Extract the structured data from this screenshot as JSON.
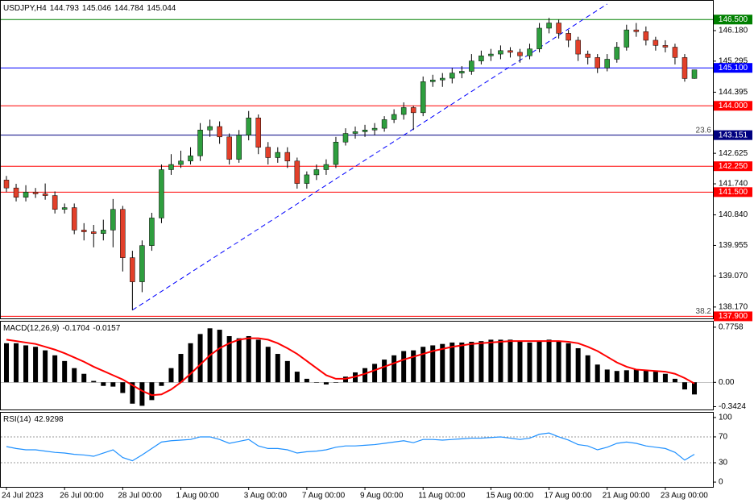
{
  "chart_data": [
    {
      "type": "candlestick",
      "title": "USDJPY,H4",
      "title_values": [
        144.793,
        145.046,
        144.784,
        145.044
      ],
      "categories": [
        "24 Jul 2023",
        null,
        null,
        null,
        null,
        null,
        "26 Jul 00:00",
        null,
        null,
        null,
        null,
        null,
        "28 Jul 00:00",
        null,
        null,
        null,
        null,
        null,
        "1 Aug 00:00",
        null,
        null,
        null,
        null,
        null,
        null,
        "3 Aug 00:00",
        null,
        null,
        null,
        null,
        null,
        "7 Aug 00:00",
        null,
        null,
        null,
        null,
        null,
        "9 Aug 00:00",
        null,
        null,
        null,
        null,
        null,
        "11 Aug 00:00",
        null,
        null,
        null,
        null,
        null,
        null,
        "15 Aug 00:00",
        null,
        null,
        null,
        null,
        null,
        "17 Aug 00:00",
        null,
        null,
        null,
        null,
        null,
        "21 Aug 00:00",
        null,
        null,
        null,
        null,
        null,
        "23 Aug 00:00",
        null,
        null,
        null
      ],
      "ohlc": [
        [
          141.85,
          141.97,
          141.5,
          141.62
        ],
        [
          141.62,
          141.74,
          141.23,
          141.35
        ],
        [
          141.35,
          141.7,
          141.23,
          141.5
        ],
        [
          141.5,
          141.62,
          141.33,
          141.45
        ],
        [
          141.45,
          141.75,
          141.28,
          141.4
        ],
        [
          141.4,
          141.52,
          140.88,
          141.0
        ],
        [
          141.0,
          141.17,
          140.88,
          141.05
        ],
        [
          141.05,
          141.17,
          140.28,
          140.4
        ],
        [
          140.4,
          140.6,
          140.1,
          140.35
        ],
        [
          140.35,
          140.55,
          139.9,
          140.3
        ],
        [
          140.3,
          140.7,
          140.1,
          140.4
        ],
        [
          140.4,
          141.3,
          139.9,
          141.0
        ],
        [
          141.0,
          141.1,
          139.2,
          139.6
        ],
        [
          139.6,
          139.8,
          138.08,
          138.9
        ],
        [
          138.9,
          140.1,
          138.6,
          139.95
        ],
        [
          139.95,
          140.9,
          139.8,
          140.75
        ],
        [
          140.75,
          142.3,
          140.6,
          142.15
        ],
        [
          142.15,
          142.6,
          142.0,
          142.3
        ],
        [
          142.3,
          142.7,
          142.2,
          142.4
        ],
        [
          142.4,
          142.8,
          142.3,
          142.55
        ],
        [
          142.55,
          143.5,
          142.4,
          143.3
        ],
        [
          143.3,
          143.6,
          143.1,
          143.4
        ],
        [
          143.4,
          143.55,
          142.9,
          143.1
        ],
        [
          143.1,
          143.2,
          142.3,
          142.45
        ],
        [
          142.45,
          143.3,
          142.35,
          143.15
        ],
        [
          143.15,
          143.85,
          143.0,
          143.65
        ],
        [
          143.65,
          143.75,
          142.6,
          142.8
        ],
        [
          142.8,
          142.95,
          142.3,
          142.5
        ],
        [
          142.5,
          142.8,
          142.35,
          142.65
        ],
        [
          142.65,
          142.8,
          142.2,
          142.4
        ],
        [
          142.4,
          142.5,
          141.6,
          141.75
        ],
        [
          141.75,
          142.1,
          141.6,
          142.0
        ],
        [
          142.0,
          142.3,
          141.85,
          142.15
        ],
        [
          142.15,
          142.45,
          142.0,
          142.3
        ],
        [
          142.3,
          143.1,
          142.2,
          142.95
        ],
        [
          142.95,
          143.35,
          142.85,
          143.2
        ],
        [
          143.2,
          143.4,
          143.05,
          143.25
        ],
        [
          143.25,
          143.45,
          143.1,
          143.3
        ],
        [
          143.3,
          143.5,
          143.15,
          143.35
        ],
        [
          143.35,
          143.7,
          143.25,
          143.6
        ],
        [
          143.6,
          143.9,
          143.5,
          143.75
        ],
        [
          143.75,
          144.1,
          143.6,
          143.95
        ],
        [
          143.95,
          144.0,
          143.3,
          143.8
        ],
        [
          143.8,
          144.85,
          143.7,
          144.7
        ],
        [
          144.7,
          144.9,
          144.55,
          144.75
        ],
        [
          144.75,
          144.95,
          144.55,
          144.8
        ],
        [
          144.8,
          145.1,
          144.65,
          144.95
        ],
        [
          144.95,
          145.15,
          144.8,
          145.0
        ],
        [
          145.0,
          145.5,
          144.9,
          145.3
        ],
        [
          145.3,
          145.6,
          145.2,
          145.45
        ],
        [
          145.45,
          145.65,
          145.3,
          145.5
        ],
        [
          145.5,
          145.75,
          145.35,
          145.6
        ],
        [
          145.6,
          145.7,
          145.4,
          145.55
        ],
        [
          145.55,
          145.65,
          145.25,
          145.45
        ],
        [
          145.45,
          145.8,
          145.35,
          145.65
        ],
        [
          145.65,
          146.4,
          145.55,
          146.25
        ],
        [
          146.25,
          146.55,
          146.1,
          146.4
        ],
        [
          146.4,
          146.5,
          145.95,
          146.1
        ],
        [
          146.1,
          146.2,
          145.7,
          145.9
        ],
        [
          145.9,
          146.0,
          145.3,
          145.5
        ],
        [
          145.5,
          145.6,
          145.2,
          145.4
        ],
        [
          145.4,
          145.5,
          144.95,
          145.1
        ],
        [
          145.1,
          145.5,
          145.0,
          145.35
        ],
        [
          145.35,
          145.85,
          145.25,
          145.7
        ],
        [
          145.7,
          146.35,
          145.6,
          146.2
        ],
        [
          146.2,
          146.4,
          146.0,
          146.15
        ],
        [
          146.15,
          146.3,
          145.75,
          145.9
        ],
        [
          145.9,
          146.0,
          145.6,
          145.75
        ],
        [
          145.75,
          145.9,
          145.55,
          145.7
        ],
        [
          145.7,
          145.8,
          145.2,
          145.4
        ],
        [
          145.4,
          145.5,
          144.7,
          144.79
        ],
        [
          144.793,
          145.046,
          144.784,
          145.044
        ]
      ],
      "up_color": "#2e9e3e",
      "down_color": "#e2402a",
      "wick_color": "#000000",
      "ylim": [
        137.84,
        147.02
      ],
      "yticks": [
        {
          "value": 146.18,
          "label": "146.180"
        },
        145.295,
        144.395,
        142.625,
        {
          "value": 141.74,
          "label": "141.740"
        },
        {
          "value": 140.84,
          "label": "140.840"
        },
        139.955,
        {
          "value": 139.07,
          "label": "139.070"
        },
        {
          "value": 138.17,
          "label": "138.170"
        }
      ],
      "levels": [
        {
          "value": 146.5,
          "label": "146.500",
          "color": "#008000"
        },
        {
          "value": 145.1,
          "label": "145.100",
          "color": "#0000ff"
        },
        {
          "value": 144.0,
          "label": "144.000",
          "color": "#ff0000"
        },
        {
          "value": 143.151,
          "label": "143.151",
          "color": "#000080"
        },
        {
          "value": 142.25,
          "label": "142.250",
          "color": "#ff0000"
        },
        {
          "value": 141.5,
          "label": "141.500",
          "color": "#ff0000"
        },
        {
          "value": 137.9,
          "label": "137.900",
          "color": "#ff0000"
        }
      ],
      "fib_labels": [
        {
          "value": 143.151,
          "label": "23.6"
        },
        {
          "value": 137.9,
          "label": "38.2"
        }
      ],
      "trendline": {
        "x": [
          13,
          62
        ],
        "y": [
          138.08,
          146.95
        ],
        "color": "#0000ff"
      }
    },
    {
      "type": "macd",
      "title": "MACD(12,26,9)",
      "title_values": [
        -0.1704,
        -0.0157
      ],
      "histogram": [
        0.55,
        0.55,
        0.52,
        0.5,
        0.45,
        0.38,
        0.3,
        0.2,
        0.12,
        0.02,
        -0.05,
        -0.06,
        -0.15,
        -0.3,
        -0.33,
        -0.25,
        -0.05,
        0.2,
        0.4,
        0.55,
        0.68,
        0.76,
        0.74,
        0.65,
        0.62,
        0.65,
        0.6,
        0.5,
        0.4,
        0.3,
        0.15,
        0.05,
        0.0,
        -0.03,
        0.0,
        0.08,
        0.14,
        0.2,
        0.26,
        0.32,
        0.38,
        0.44,
        0.45,
        0.5,
        0.52,
        0.54,
        0.56,
        0.56,
        0.57,
        0.58,
        0.6,
        0.6,
        0.6,
        0.58,
        0.56,
        0.58,
        0.6,
        0.58,
        0.55,
        0.48,
        0.38,
        0.25,
        0.18,
        0.16,
        0.17,
        0.18,
        0.17,
        0.15,
        0.12,
        0.05,
        -0.1,
        -0.1704
      ],
      "signal": [
        0.6,
        0.58,
        0.56,
        0.54,
        0.5,
        0.46,
        0.41,
        0.35,
        0.29,
        0.22,
        0.16,
        0.1,
        0.04,
        -0.04,
        -0.12,
        -0.18,
        -0.17,
        -0.1,
        0.0,
        0.12,
        0.25,
        0.38,
        0.48,
        0.55,
        0.6,
        0.62,
        0.62,
        0.6,
        0.55,
        0.48,
        0.4,
        0.3,
        0.2,
        0.1,
        0.05,
        0.05,
        0.08,
        0.12,
        0.17,
        0.22,
        0.27,
        0.32,
        0.36,
        0.4,
        0.44,
        0.47,
        0.5,
        0.52,
        0.54,
        0.55,
        0.56,
        0.57,
        0.58,
        0.58,
        0.58,
        0.58,
        0.58,
        0.58,
        0.57,
        0.55,
        0.5,
        0.44,
        0.36,
        0.28,
        0.22,
        0.18,
        0.17,
        0.16,
        0.15,
        0.12,
        0.06,
        -0.0157
      ],
      "histogram_color": "#000000",
      "signal_color": "#ff0000",
      "ylim": [
        -0.382,
        0.854
      ],
      "yticks": [
        0.7758,
        {
          "value": 0,
          "label": "0.00"
        },
        -0.3424
      ]
    },
    {
      "type": "line",
      "title": "RSI(14)",
      "title_values": [
        42.9298
      ],
      "values": [
        55,
        52,
        50,
        50,
        48,
        46,
        45,
        43,
        42,
        40,
        45,
        50,
        38,
        33,
        42,
        52,
        62,
        64,
        65,
        66,
        70,
        70,
        66,
        60,
        63,
        66,
        56,
        52,
        52,
        50,
        45,
        47,
        48,
        50,
        54,
        56,
        56,
        57,
        58,
        60,
        62,
        64,
        61,
        66,
        66,
        65,
        66,
        67,
        68,
        68,
        69,
        70,
        68,
        66,
        68,
        74,
        76,
        70,
        65,
        58,
        56,
        50,
        54,
        60,
        62,
        60,
        56,
        54,
        52,
        46,
        34,
        42.9298
      ],
      "color": "#1e90ff",
      "ylim": [
        -7.4,
        107.4
      ],
      "yticks": [
        100,
        70,
        30,
        0
      ],
      "dotted_levels": [
        70,
        30
      ]
    }
  ]
}
